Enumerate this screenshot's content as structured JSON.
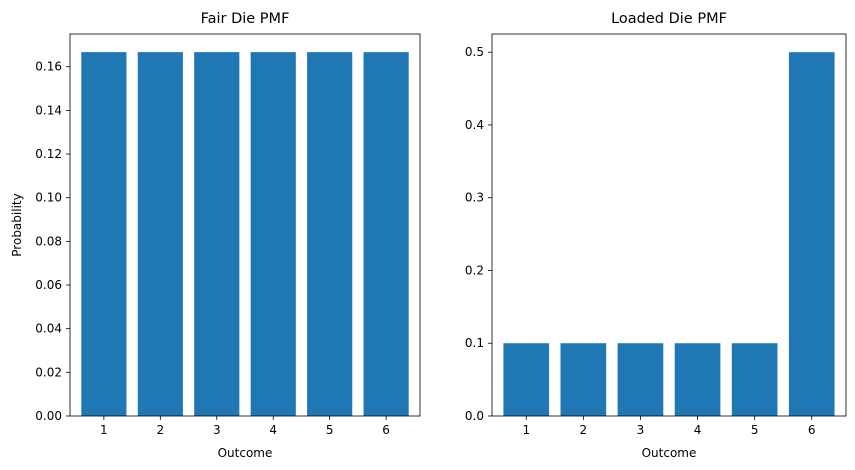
{
  "chart_data": [
    {
      "type": "bar",
      "title": "Fair Die PMF",
      "xlabel": "Outcome",
      "ylabel": "Probability",
      "categories": [
        "1",
        "2",
        "3",
        "4",
        "5",
        "6"
      ],
      "values": [
        0.1667,
        0.1667,
        0.1667,
        0.1667,
        0.1667,
        0.1667
      ],
      "ylim": [
        0,
        0.175
      ],
      "yticks": [
        "0.00",
        "0.02",
        "0.04",
        "0.06",
        "0.08",
        "0.10",
        "0.12",
        "0.14",
        "0.16"
      ],
      "grid": false,
      "bar_color": "#1f77b4"
    },
    {
      "type": "bar",
      "title": "Loaded Die PMF",
      "xlabel": "Outcome",
      "ylabel": "",
      "categories": [
        "1",
        "2",
        "3",
        "4",
        "5",
        "6"
      ],
      "values": [
        0.1,
        0.1,
        0.1,
        0.1,
        0.1,
        0.5
      ],
      "ylim": [
        0,
        0.525
      ],
      "yticks": [
        "0.0",
        "0.1",
        "0.2",
        "0.3",
        "0.4",
        "0.5"
      ],
      "grid": false,
      "bar_color": "#1f77b4"
    }
  ]
}
